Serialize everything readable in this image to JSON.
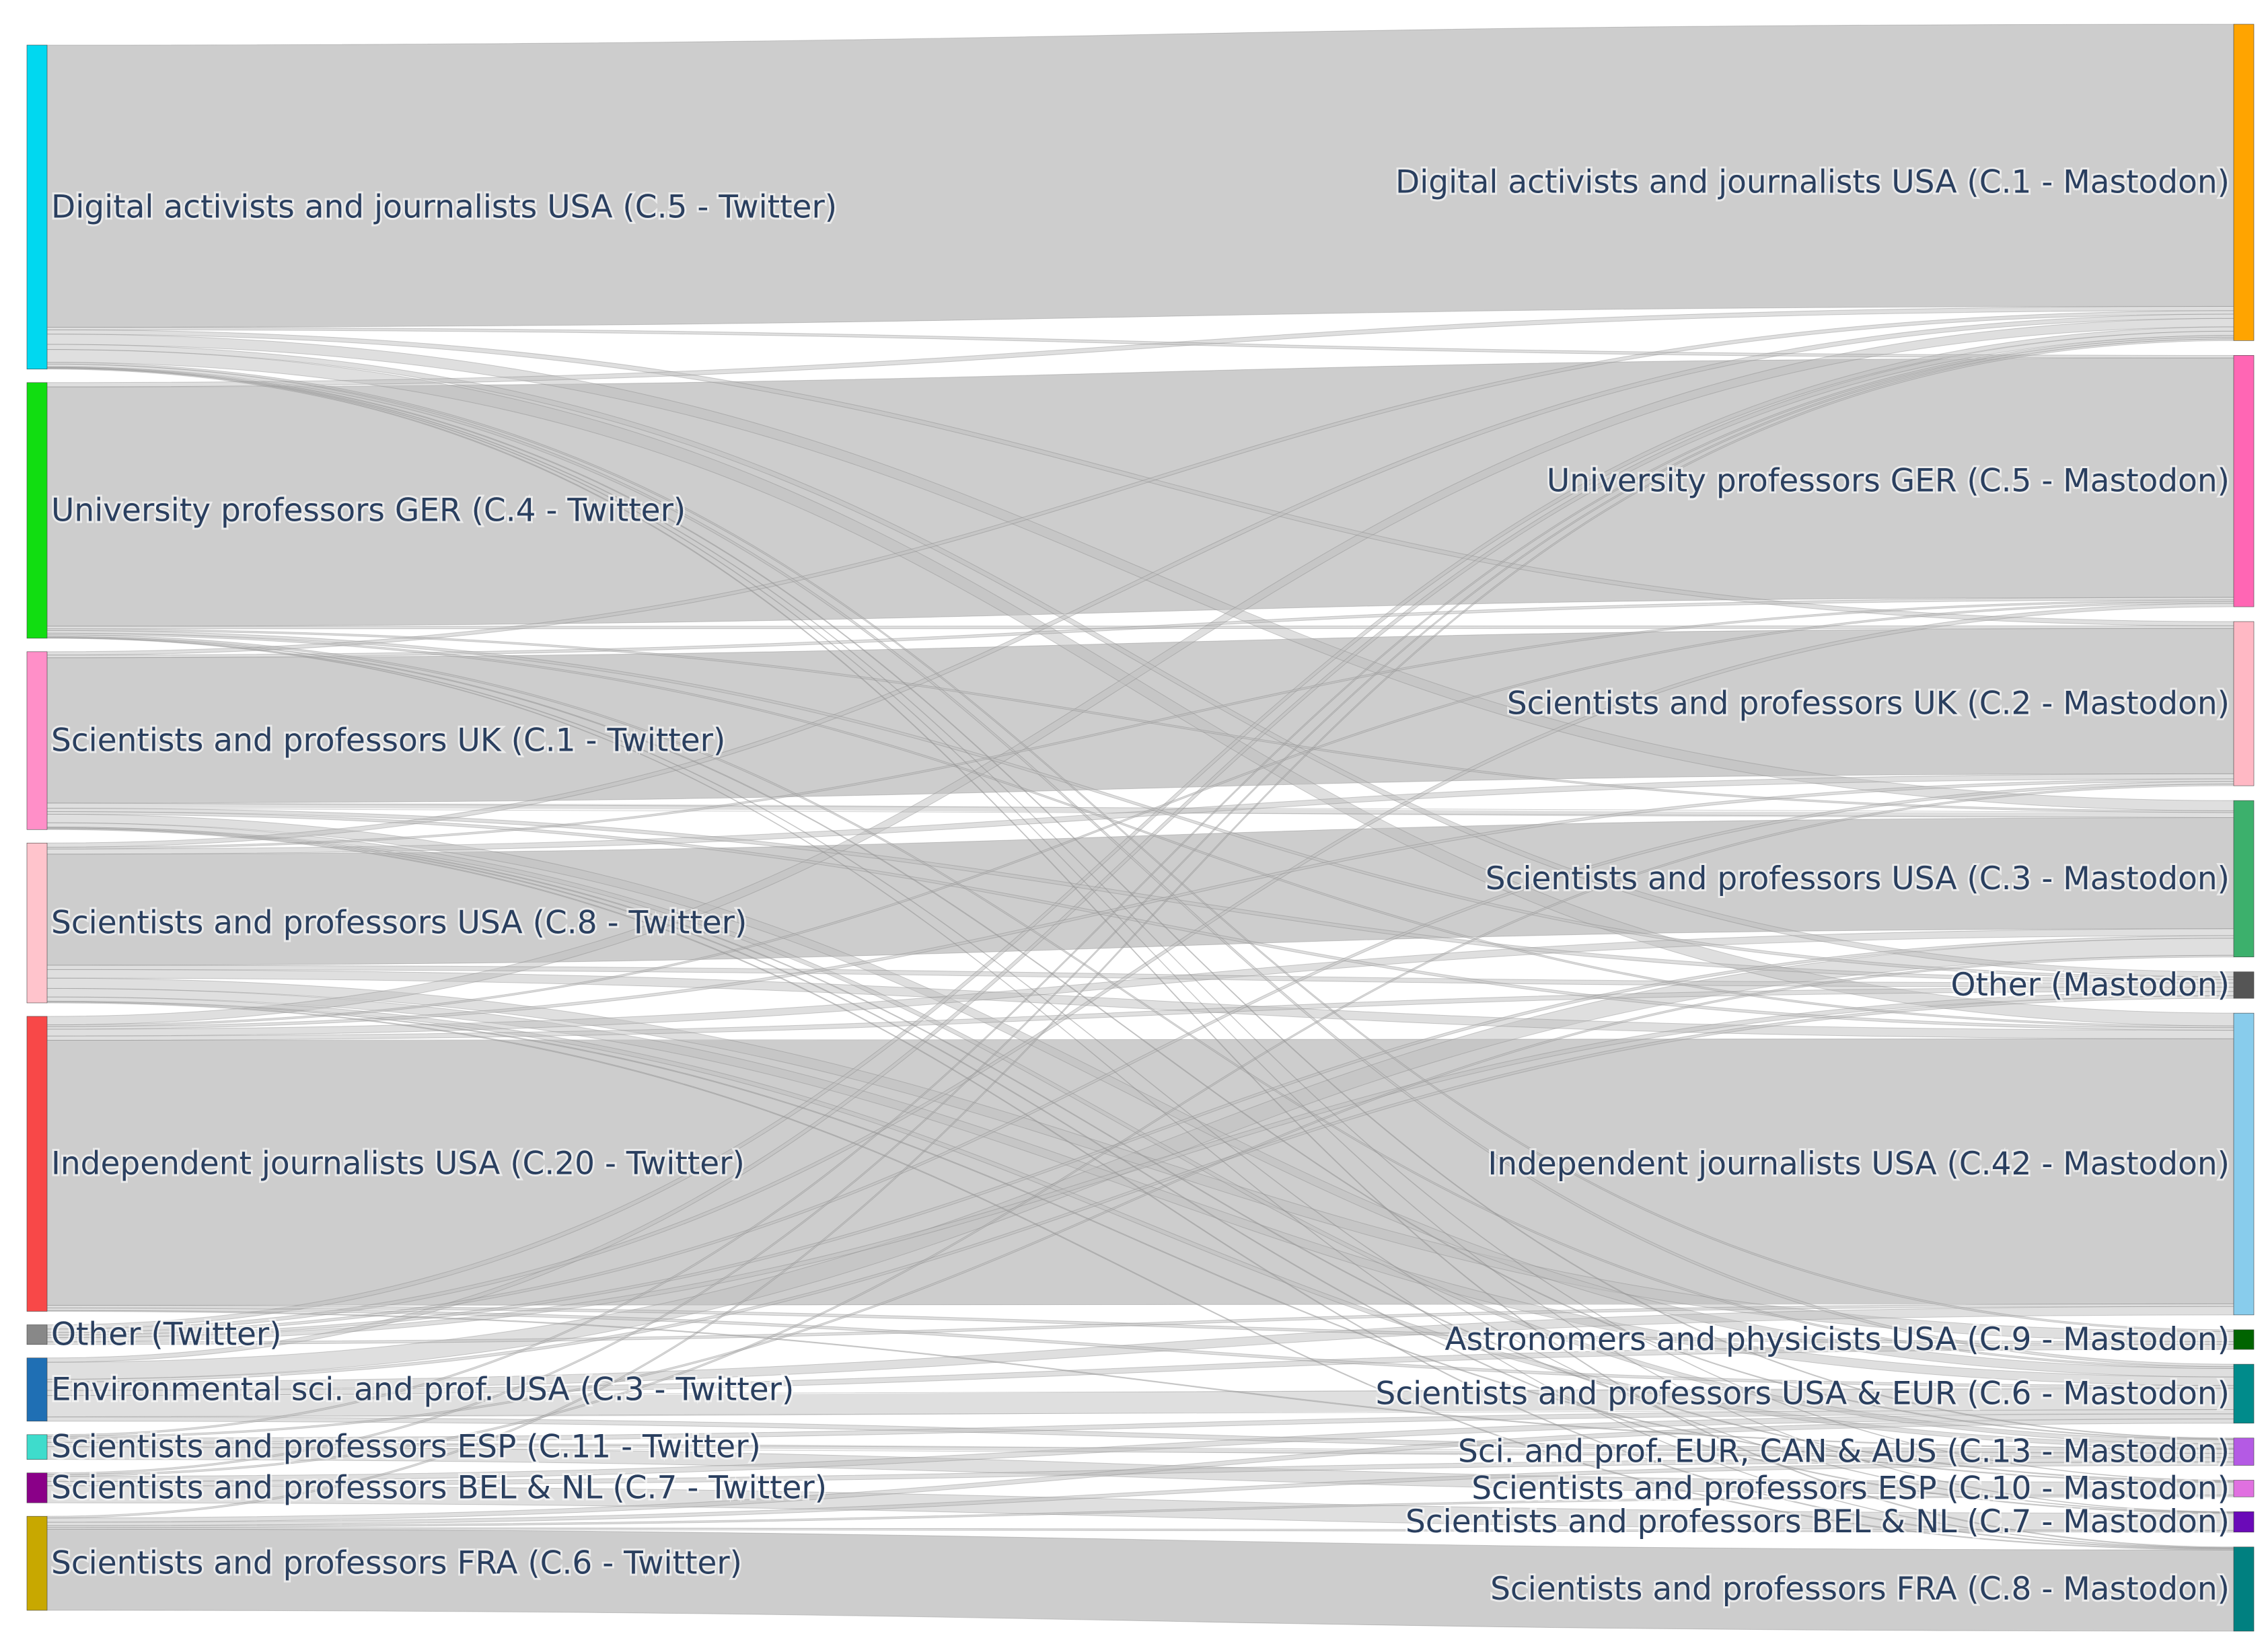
{
  "diagram": {
    "type": "sankey",
    "title": "",
    "link_color": "#c0c0c0",
    "sources": [
      {
        "id": "s_c5",
        "label": "Digital activists and journalists USA (C.5 - Twitter)",
        "color": "#00d8f0"
      },
      {
        "id": "s_c4",
        "label": "University professors GER (C.4 - Twitter)",
        "color": "#11dd11"
      },
      {
        "id": "s_c1",
        "label": "Scientists and professors UK (C.1 - Twitter)",
        "color": "#ff8fc8"
      },
      {
        "id": "s_c8",
        "label": "Scientists and professors USA (C.8 - Twitter)",
        "color": "#ffc4cc"
      },
      {
        "id": "s_c20",
        "label": "Independent journalists USA (C.20 - Twitter)",
        "color": "#f84848"
      },
      {
        "id": "s_other",
        "label": "Other (Twitter)",
        "color": "#888888"
      },
      {
        "id": "s_c3",
        "label": "Environmental sci. and prof. USA (C.3 - Twitter)",
        "color": "#1f6fb4"
      },
      {
        "id": "s_c11",
        "label": "Scientists and professors ESP (C.11 - Twitter)",
        "color": "#3edccc"
      },
      {
        "id": "s_c7",
        "label": "Scientists and professors BEL & NL (C.7 - Twitter)",
        "color": "#8a0088"
      },
      {
        "id": "s_c6",
        "label": "Scientists and professors FRA (C.6 - Twitter)",
        "color": "#c8a800"
      }
    ],
    "targets": [
      {
        "id": "t_c1",
        "label": "Digital activists and journalists USA (C.1 - Mastodon)",
        "color": "#ffa400"
      },
      {
        "id": "t_c5",
        "label": "University professors GER (C.5 - Mastodon)",
        "color": "#ff66b4"
      },
      {
        "id": "t_c2",
        "label": "Scientists and professors UK (C.2 - Mastodon)",
        "color": "#ffb8c4"
      },
      {
        "id": "t_c3",
        "label": "Scientists and professors USA (C.3 - Mastodon)",
        "color": "#3cb06c"
      },
      {
        "id": "t_other",
        "label": "Other (Mastodon)",
        "color": "#555555"
      },
      {
        "id": "t_c42",
        "label": "Independent journalists USA (C.42 - Mastodon)",
        "color": "#88ccec"
      },
      {
        "id": "t_c9",
        "label": "Astronomers and physicists USA (C.9 - Mastodon)",
        "color": "#006400"
      },
      {
        "id": "t_c6",
        "label": "Scientists and professors USA & EUR (C.6 - Mastodon)",
        "color": "#008b8b"
      },
      {
        "id": "t_c13",
        "label": "Sci. and prof. EUR, CAN & AUS (C.13 - Mastodon)",
        "color": "#b45ae4"
      },
      {
        "id": "t_c10",
        "label": "Scientists and professors ESP (C.10 - Mastodon)",
        "color": "#e070e0"
      },
      {
        "id": "t_c7",
        "label": "Scientists and professors BEL & NL (C.7 - Mastodon)",
        "color": "#6a0ab8"
      },
      {
        "id": "t_c8",
        "label": "Scientists and professors FRA (C.8 - Mastodon)",
        "color": "#008080"
      }
    ],
    "links": [
      [
        "s_c5",
        "t_c1",
        33.0
      ],
      [
        "s_c5",
        "t_c42",
        1.5
      ],
      [
        "s_c5",
        "t_c3",
        1.2
      ],
      [
        "s_c5",
        "t_c2",
        0.5
      ],
      [
        "s_c5",
        "t_c5",
        0.3
      ],
      [
        "s_c5",
        "t_other",
        0.6
      ],
      [
        "s_c5",
        "t_c6",
        0.3
      ],
      [
        "s_c5",
        "t_c9",
        0.2
      ],
      [
        "s_c5",
        "t_c13",
        0.1
      ],
      [
        "s_c5",
        "t_c10",
        0.05
      ],
      [
        "s_c5",
        "t_c7",
        0.05
      ],
      [
        "s_c5",
        "t_c8",
        0.1
      ],
      [
        "s_c4",
        "t_c5",
        28.0
      ],
      [
        "s_c4",
        "t_c1",
        0.5
      ],
      [
        "s_c4",
        "t_c2",
        0.3
      ],
      [
        "s_c4",
        "t_c3",
        0.2
      ],
      [
        "s_c4",
        "t_other",
        0.3
      ],
      [
        "s_c4",
        "t_c42",
        0.2
      ],
      [
        "s_c4",
        "t_c6",
        0.2
      ],
      [
        "s_c4",
        "t_c13",
        0.1
      ],
      [
        "s_c4",
        "t_c7",
        0.05
      ],
      [
        "s_c4",
        "t_c8",
        0.05
      ],
      [
        "s_c1",
        "t_c2",
        17.0
      ],
      [
        "s_c1",
        "t_c3",
        0.6
      ],
      [
        "s_c1",
        "t_c1",
        0.4
      ],
      [
        "s_c1",
        "t_c5",
        0.3
      ],
      [
        "s_c1",
        "t_other",
        0.4
      ],
      [
        "s_c1",
        "t_c42",
        0.3
      ],
      [
        "s_c1",
        "t_c6",
        1.0
      ],
      [
        "s_c1",
        "t_c13",
        0.5
      ],
      [
        "s_c1",
        "t_c10",
        0.1
      ],
      [
        "s_c1",
        "t_c7",
        0.1
      ],
      [
        "s_c1",
        "t_c8",
        0.1
      ],
      [
        "s_c8",
        "t_c3",
        13.0
      ],
      [
        "s_c8",
        "t_c42",
        1.0
      ],
      [
        "s_c8",
        "t_c1",
        0.5
      ],
      [
        "s_c8",
        "t_c2",
        0.6
      ],
      [
        "s_c8",
        "t_c5",
        0.2
      ],
      [
        "s_c8",
        "t_other",
        0.5
      ],
      [
        "s_c8",
        "t_c9",
        1.2
      ],
      [
        "s_c8",
        "t_c6",
        1.0
      ],
      [
        "s_c8",
        "t_c13",
        0.5
      ],
      [
        "s_c8",
        "t_c10",
        0.1
      ],
      [
        "s_c8",
        "t_c8",
        0.1
      ],
      [
        "s_c20",
        "t_c42",
        31.0
      ],
      [
        "s_c20",
        "t_c1",
        1.0
      ],
      [
        "s_c20",
        "t_c3",
        0.8
      ],
      [
        "s_c20",
        "t_c2",
        0.3
      ],
      [
        "s_c20",
        "t_c5",
        0.2
      ],
      [
        "s_c20",
        "t_other",
        0.5
      ],
      [
        "s_c20",
        "t_c9",
        0.3
      ],
      [
        "s_c20",
        "t_c6",
        0.3
      ],
      [
        "s_c20",
        "t_c13",
        0.1
      ],
      [
        "s_other",
        "t_c1",
        0.5
      ],
      [
        "s_other",
        "t_c5",
        0.4
      ],
      [
        "s_other",
        "t_c2",
        0.3
      ],
      [
        "s_other",
        "t_c3",
        0.3
      ],
      [
        "s_other",
        "t_other",
        0.5
      ],
      [
        "s_other",
        "t_c42",
        0.3
      ],
      [
        "s_c3",
        "t_c3",
        2.0
      ],
      [
        "s_c3",
        "t_c42",
        1.0
      ],
      [
        "s_c3",
        "t_c6",
        2.5
      ],
      [
        "s_c3",
        "t_c1",
        0.5
      ],
      [
        "s_c3",
        "t_c9",
        0.6
      ],
      [
        "s_c3",
        "t_c13",
        0.5
      ],
      [
        "s_c3",
        "t_other",
        0.3
      ],
      [
        "s_c11",
        "t_c10",
        1.5
      ],
      [
        "s_c11",
        "t_c6",
        0.5
      ],
      [
        "s_c11",
        "t_c13",
        0.5
      ],
      [
        "s_c11",
        "t_c3",
        0.2
      ],
      [
        "s_c11",
        "t_c1",
        0.2
      ],
      [
        "s_c7",
        "t_c7",
        2.0
      ],
      [
        "s_c7",
        "t_c6",
        0.6
      ],
      [
        "s_c7",
        "t_c13",
        0.5
      ],
      [
        "s_c7",
        "t_c2",
        0.2
      ],
      [
        "s_c7",
        "t_c1",
        0.2
      ],
      [
        "s_c6",
        "t_c8",
        9.5
      ],
      [
        "s_c6",
        "t_c6",
        0.5
      ],
      [
        "s_c6",
        "t_c13",
        0.4
      ],
      [
        "s_c6",
        "t_c10",
        0.2
      ],
      [
        "s_c6",
        "t_c7",
        0.2
      ],
      [
        "s_c6",
        "t_c1",
        0.2
      ]
    ]
  }
}
